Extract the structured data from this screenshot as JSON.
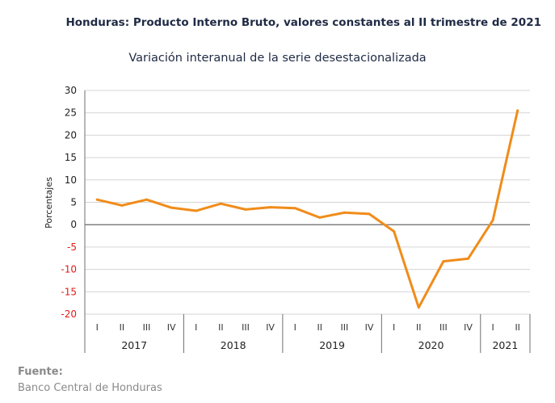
{
  "header": {
    "title": "Honduras: Producto Interno Bruto, valores constantes al II trimestre de 2021",
    "subtitle": "Variación interanual de la serie desestacionalizada"
  },
  "footer": {
    "source_label": "Fuente:",
    "source_text": "Banco Central de Honduras"
  },
  "chart_data": {
    "type": "line",
    "title": "Honduras: Producto Interno Bruto, valores constantes al II trimestre de 2021",
    "subtitle": "Variación interanual de la serie desestacionalizada",
    "xlabel": "",
    "ylabel": "Porcentajes",
    "ylim": [
      -20,
      30
    ],
    "yticks": [
      30,
      25,
      20,
      15,
      10,
      5,
      0,
      -5,
      -10,
      -15,
      -20
    ],
    "ytick_labels": [
      "30",
      "25",
      "20",
      "15",
      "10",
      "5",
      "0",
      "-5",
      "-10",
      "-15",
      "-20"
    ],
    "grid": "horizontal",
    "zero_line": true,
    "categories": [
      "I",
      "II",
      "III",
      "IV",
      "I",
      "II",
      "III",
      "IV",
      "I",
      "II",
      "III",
      "IV",
      "I",
      "II",
      "III",
      "IV",
      "I",
      "II"
    ],
    "groups": [
      {
        "label": "2017",
        "count": 4
      },
      {
        "label": "2018",
        "count": 4
      },
      {
        "label": "2019",
        "count": 4
      },
      {
        "label": "2020",
        "count": 4
      },
      {
        "label": "2021",
        "count": 2
      }
    ],
    "series": [
      {
        "values": [
          5.6,
          4.3,
          5.6,
          3.8,
          3.1,
          4.7,
          3.4,
          3.9,
          3.7,
          1.6,
          2.7,
          2.4,
          -1.5,
          -18.5,
          -8.2,
          -7.6,
          1.0,
          25.5
        ]
      }
    ],
    "colors": {
      "line": "#f08c1a",
      "grid": "#d4d4d4",
      "zero_line": "#808080",
      "negative_tick": "#e11b1b",
      "positive_tick": "#1f1f1f",
      "axis": "#6f6f6f"
    }
  }
}
